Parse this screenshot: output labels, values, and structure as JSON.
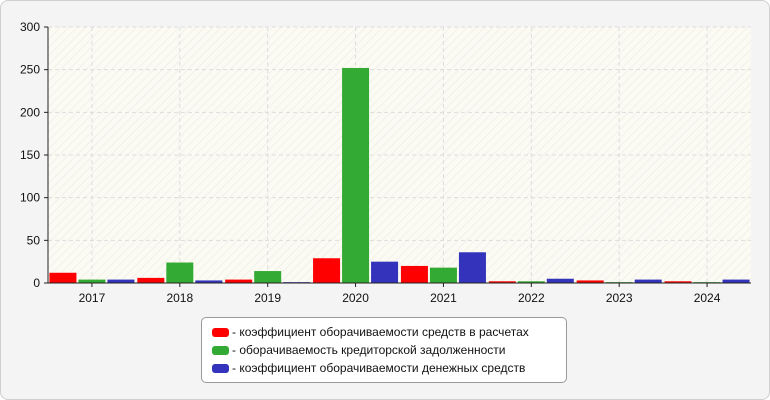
{
  "chart_data": {
    "type": "bar",
    "categories": [
      "2017",
      "2018",
      "2019",
      "2020",
      "2021",
      "2022",
      "2023",
      "2024"
    ],
    "series": [
      {
        "name": "- коэффициент оборачиваемости средств в расчетах",
        "color": "#ff0000",
        "values": [
          12,
          6,
          4,
          29,
          20,
          2,
          3,
          2
        ]
      },
      {
        "name": "- оборачиваемость кредиторской задолженности",
        "color": "#33aa33",
        "values": [
          4,
          24,
          14,
          252,
          18,
          2,
          1,
          1
        ]
      },
      {
        "name": "- коэффициент оборачиваемости денежных средств",
        "color": "#3333bb",
        "values": [
          4,
          3,
          1,
          25,
          36,
          5,
          4,
          4
        ]
      }
    ],
    "yticks": [
      "0",
      "50",
      "100",
      "150",
      "200",
      "250",
      "300"
    ],
    "ylim": [
      0,
      300
    ],
    "grid": true,
    "legend_position": "bottom-center"
  }
}
